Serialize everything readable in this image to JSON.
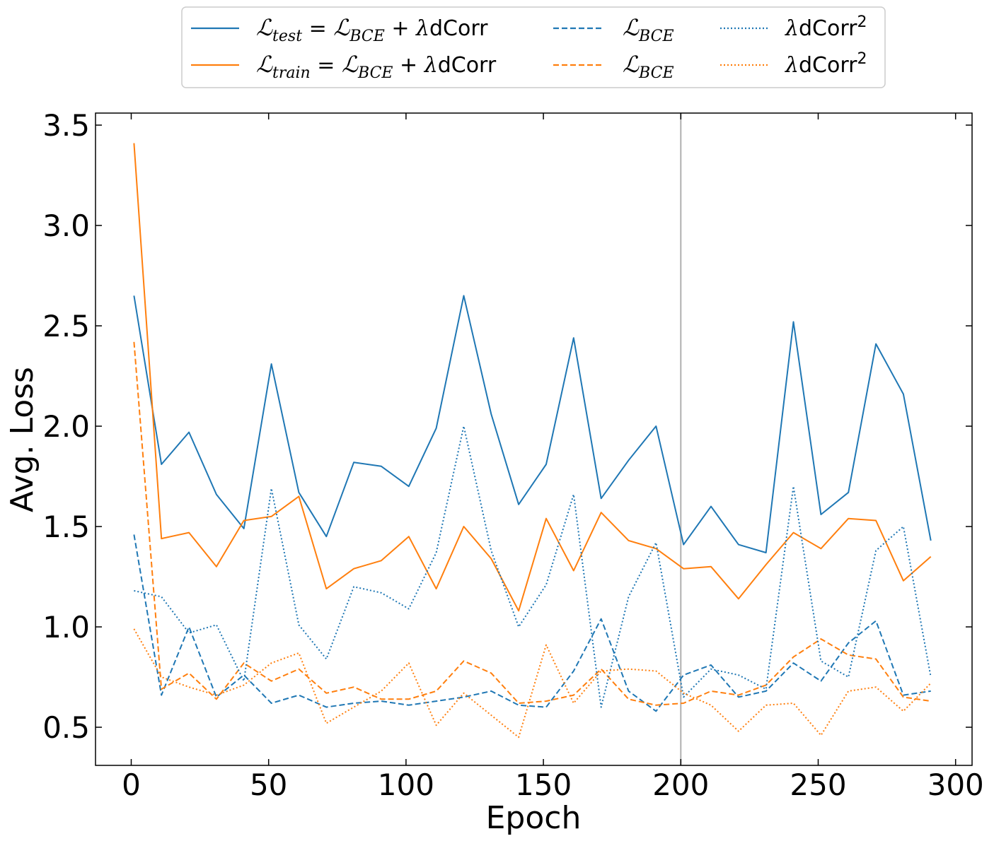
{
  "chart_data": {
    "type": "line",
    "xlabel": "Epoch",
    "ylabel": "Avg. Loss",
    "xlim": [
      -13,
      306
    ],
    "ylim": [
      0.31,
      3.56
    ],
    "xticks": [
      0,
      50,
      100,
      150,
      200,
      250,
      300
    ],
    "yticks": [
      0.5,
      1.0,
      1.5,
      2.0,
      2.5,
      3.0,
      3.5
    ],
    "xtick_labels": [
      "0",
      "50",
      "100",
      "150",
      "200",
      "250",
      "300"
    ],
    "ytick_labels": [
      "0.5",
      "1.0",
      "1.5",
      "2.0",
      "2.5",
      "3.0",
      "3.5"
    ],
    "vertical_line_x": 200,
    "legend_position": "top-center, outside plot, 3 columns",
    "x": [
      1,
      11,
      21,
      31,
      41,
      51,
      61,
      71,
      81,
      91,
      101,
      111,
      121,
      131,
      141,
      151,
      161,
      171,
      181,
      191,
      201,
      211,
      221,
      231,
      241,
      251,
      261,
      271,
      281,
      291
    ],
    "series": [
      {
        "name": "L_test = L_BCE + λdCorr",
        "color": "#1f77b4",
        "style": "solid",
        "values": [
          2.65,
          1.81,
          1.97,
          1.66,
          1.49,
          2.31,
          1.67,
          1.45,
          1.82,
          1.8,
          1.7,
          1.99,
          2.65,
          2.06,
          1.61,
          1.81,
          2.44,
          1.64,
          1.83,
          2.0,
          1.41,
          1.6,
          1.41,
          1.37,
          2.52,
          1.56,
          1.67,
          2.41,
          2.16,
          1.43
        ]
      },
      {
        "name": "L_train = L_BCE + λdCorr",
        "color": "#ff7f0e",
        "style": "solid",
        "values": [
          3.41,
          1.44,
          1.47,
          1.3,
          1.53,
          1.55,
          1.65,
          1.19,
          1.29,
          1.33,
          1.45,
          1.19,
          1.5,
          1.34,
          1.08,
          1.54,
          1.28,
          1.57,
          1.43,
          1.39,
          1.29,
          1.3,
          1.14,
          1.31,
          1.47,
          1.39,
          1.54,
          1.53,
          1.23,
          1.35
        ]
      },
      {
        "name": "L_BCE",
        "color": "#1f77b4",
        "style": "dashed",
        "values": [
          1.46,
          0.66,
          1.0,
          0.65,
          0.76,
          0.62,
          0.66,
          0.6,
          0.62,
          0.63,
          0.61,
          0.63,
          0.65,
          0.68,
          0.61,
          0.6,
          0.78,
          1.04,
          0.68,
          0.58,
          0.76,
          0.81,
          0.65,
          0.68,
          0.82,
          0.73,
          0.92,
          1.03,
          0.66,
          0.68
        ]
      },
      {
        "name": "L_BCE",
        "color": "#ff7f0e",
        "style": "dashed",
        "values": [
          2.42,
          0.69,
          0.77,
          0.64,
          0.82,
          0.73,
          0.79,
          0.67,
          0.7,
          0.64,
          0.64,
          0.68,
          0.83,
          0.77,
          0.62,
          0.63,
          0.66,
          0.79,
          0.64,
          0.61,
          0.62,
          0.68,
          0.66,
          0.71,
          0.85,
          0.94,
          0.86,
          0.84,
          0.65,
          0.63
        ]
      },
      {
        "name": "λdCorr²",
        "color": "#1f77b4",
        "style": "dotted",
        "values": [
          1.18,
          1.15,
          0.97,
          1.01,
          0.73,
          1.69,
          1.01,
          0.84,
          1.2,
          1.17,
          1.09,
          1.37,
          2.0,
          1.38,
          1.0,
          1.21,
          1.66,
          0.6,
          1.15,
          1.42,
          0.65,
          0.79,
          0.76,
          0.69,
          1.7,
          0.83,
          0.75,
          1.38,
          1.5,
          0.75
        ]
      },
      {
        "name": "λdCorr²",
        "color": "#ff7f0e",
        "style": "dotted",
        "values": [
          0.99,
          0.75,
          0.7,
          0.66,
          0.71,
          0.82,
          0.87,
          0.52,
          0.6,
          0.68,
          0.82,
          0.51,
          0.67,
          0.56,
          0.45,
          0.91,
          0.62,
          0.78,
          0.79,
          0.78,
          0.67,
          0.61,
          0.48,
          0.61,
          0.62,
          0.46,
          0.68,
          0.7,
          0.58,
          0.72
        ]
      }
    ]
  }
}
